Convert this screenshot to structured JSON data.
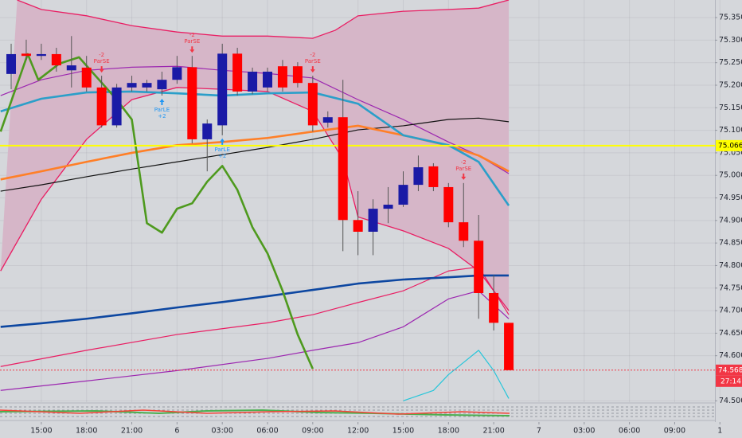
{
  "chart_data": {
    "type": "candlestick",
    "xlim": [
      -0.74,
      46.67
    ],
    "ylim": [
      74.497,
      75.389
    ],
    "xticks": [
      {
        "value": 2,
        "label": "15:00"
      },
      {
        "value": 5,
        "label": "18:00"
      },
      {
        "value": 8,
        "label": "21:00"
      },
      {
        "value": 11,
        "label": "6"
      },
      {
        "value": 14,
        "label": "03:00"
      },
      {
        "value": 17,
        "label": "06:00"
      },
      {
        "value": 20,
        "label": "09:00"
      },
      {
        "value": 23,
        "label": "12:00"
      },
      {
        "value": 26,
        "label": "15:00"
      },
      {
        "value": 29,
        "label": "18:00"
      },
      {
        "value": 32,
        "label": "21:00"
      },
      {
        "value": 35,
        "label": "7"
      },
      {
        "value": 38,
        "label": "03:00"
      },
      {
        "value": 41,
        "label": "06:00"
      },
      {
        "value": 44,
        "label": "09:00"
      },
      {
        "value": 47,
        "label": "1"
      }
    ],
    "yticks": [
      {
        "value": 75.35,
        "label": "75.350"
      },
      {
        "value": 75.3,
        "label": "75.300"
      },
      {
        "value": 75.25,
        "label": "75.250"
      },
      {
        "value": 75.2,
        "label": "75.200"
      },
      {
        "value": 75.15,
        "label": "75.150"
      },
      {
        "value": 75.1,
        "label": "75.100"
      },
      {
        "value": 75.05,
        "label": "75.050"
      },
      {
        "value": 75.0,
        "label": "75.000"
      },
      {
        "value": 74.95,
        "label": "74.950"
      },
      {
        "value": 74.9,
        "label": "74.900"
      },
      {
        "value": 74.85,
        "label": "74.850"
      },
      {
        "value": 74.8,
        "label": "74.800"
      },
      {
        "value": 74.75,
        "label": "74.750"
      },
      {
        "value": 74.7,
        "label": "74.700"
      },
      {
        "value": 74.65,
        "label": "74.650"
      },
      {
        "value": 74.6,
        "label": "74.600"
      },
      {
        "value": 74.5,
        "label": "74.500"
      }
    ],
    "grid": true,
    "up_color": "#1a1aa6",
    "down_color": "#ff0000",
    "wick_color": "#555555",
    "open": [
      75.225,
      75.27,
      75.265,
      75.269,
      75.233,
      75.239,
      75.195,
      75.111,
      75.195,
      75.195,
      75.191,
      75.212,
      75.24,
      75.08,
      75.111,
      75.27,
      75.186,
      75.195,
      75.242,
      75.242,
      75.205,
      75.117,
      75.129,
      74.901,
      74.875,
      74.926,
      74.935,
      74.979,
      75.02,
      74.974,
      74.896,
      74.855,
      74.739,
      74.673
    ],
    "high": [
      75.292,
      75.301,
      75.292,
      75.283,
      75.309,
      75.265,
      75.221,
      75.203,
      75.221,
      75.212,
      75.23,
      75.265,
      75.265,
      75.124,
      75.292,
      75.283,
      75.239,
      75.239,
      75.256,
      75.251,
      75.221,
      75.142,
      75.212,
      74.965,
      74.947,
      74.974,
      75.009,
      75.044,
      75.027,
      74.983,
      74.983,
      74.912,
      74.779,
      74.673
    ],
    "low": [
      75.191,
      75.256,
      75.256,
      75.23,
      75.195,
      75.186,
      75.106,
      75.106,
      75.186,
      75.186,
      75.177,
      75.203,
      75.071,
      75.009,
      75.089,
      75.177,
      75.18,
      75.186,
      75.186,
      75.195,
      75.097,
      75.106,
      74.832,
      74.823,
      74.823,
      74.894,
      74.93,
      74.965,
      74.965,
      74.885,
      74.841,
      74.682,
      74.656,
      74.568
    ],
    "close": [
      75.269,
      75.265,
      75.269,
      75.244,
      75.244,
      75.195,
      75.111,
      75.195,
      75.205,
      75.205,
      75.212,
      75.24,
      75.08,
      75.115,
      75.27,
      75.186,
      75.23,
      75.23,
      75.195,
      75.205,
      75.111,
      75.129,
      74.901,
      74.875,
      74.926,
      74.935,
      74.979,
      75.018,
      74.974,
      74.896,
      74.855,
      74.739,
      74.673,
      74.568
    ],
    "bands": {
      "color": "#e91e63",
      "fill": "#d6b6c8",
      "upper": {
        "x": [
          0.4,
          2,
          5,
          8,
          11,
          14,
          17,
          20,
          21.5,
          23,
          26,
          29,
          31,
          33
        ],
        "values": [
          75.389,
          75.368,
          75.354,
          75.332,
          75.318,
          75.309,
          75.309,
          75.304,
          75.322,
          75.354,
          75.364,
          75.368,
          75.371,
          75.389
        ]
      },
      "lower": {
        "x": [
          -0.7,
          2,
          5,
          8,
          11,
          14,
          17,
          20,
          22,
          23,
          26,
          29,
          31,
          33
        ],
        "values": [
          74.788,
          74.947,
          75.08,
          75.168,
          75.195,
          75.191,
          75.186,
          75.142,
          75.036,
          74.908,
          74.877,
          74.838,
          74.788,
          74.7
        ]
      }
    },
    "series": [
      {
        "color": "#9c27b0",
        "thick": false,
        "x": [
          -0.7,
          2,
          5,
          8,
          11,
          14,
          17,
          20,
          23,
          26,
          29,
          31,
          33
        ],
        "values": [
          75.177,
          75.212,
          75.233,
          75.24,
          75.242,
          75.233,
          75.226,
          75.216,
          75.168,
          75.124,
          75.074,
          75.044,
          75.004
        ]
      },
      {
        "color": "#e91e63",
        "thick": false,
        "x": [
          -0.7,
          5,
          11,
          17,
          20,
          23,
          26,
          29,
          31,
          33
        ],
        "values": [
          74.576,
          74.612,
          74.647,
          74.673,
          74.691,
          74.718,
          74.744,
          74.788,
          74.797,
          74.691
        ]
      },
      {
        "color": "#9c27b0",
        "thick": false,
        "x": [
          -0.7,
          5,
          11,
          17,
          20,
          23,
          26,
          29,
          31,
          33
        ],
        "values": [
          74.523,
          74.544,
          74.567,
          74.594,
          74.612,
          74.629,
          74.664,
          74.726,
          74.744,
          74.682
        ]
      },
      {
        "color": "#26c6da",
        "thick": false,
        "x": [
          26,
          28,
          29,
          30,
          31,
          32,
          33
        ],
        "values": [
          74.5,
          74.523,
          74.558,
          74.585,
          74.612,
          74.567,
          74.505
        ]
      },
      {
        "color": "#0d47a1",
        "thick": true,
        "x": [
          -0.7,
          2,
          5,
          8,
          11,
          14,
          17,
          20,
          23,
          26,
          29,
          31,
          33
        ],
        "values": [
          74.664,
          74.672,
          74.682,
          74.694,
          74.707,
          74.719,
          74.732,
          74.746,
          74.76,
          74.769,
          74.774,
          74.778,
          74.778
        ]
      },
      {
        "color": "#111111",
        "thick": false,
        "x": [
          -0.7,
          2,
          5,
          8,
          11,
          14,
          17,
          20,
          23,
          26,
          29,
          31,
          33
        ],
        "values": [
          74.965,
          74.979,
          74.997,
          75.014,
          75.03,
          75.046,
          75.062,
          75.08,
          75.101,
          75.11,
          75.124,
          75.127,
          75.119
        ]
      },
      {
        "color": "#ff7f27",
        "thick": true,
        "x": [
          -0.7,
          2,
          5,
          8,
          11,
          14,
          17,
          20,
          23,
          26,
          29,
          31,
          33
        ],
        "values": [
          74.991,
          75.009,
          75.03,
          75.05,
          75.067,
          75.074,
          75.083,
          75.097,
          75.11,
          75.089,
          75.066,
          75.044,
          75.009
        ]
      },
      {
        "color": "#2b9fc9",
        "thick": true,
        "x": [
          -0.7,
          2,
          5,
          8,
          11,
          14,
          17,
          20,
          23,
          26,
          29,
          31,
          33
        ],
        "values": [
          75.142,
          75.17,
          75.184,
          75.186,
          75.182,
          75.177,
          75.182,
          75.184,
          75.159,
          75.089,
          75.067,
          75.03,
          74.933
        ]
      },
      {
        "color": "#4e9a1e",
        "thick": true,
        "x": [
          -0.7,
          1.1,
          1.8,
          3.2,
          4.5,
          7,
          8,
          9,
          10,
          11,
          12,
          13,
          14,
          15,
          16,
          17,
          18,
          19,
          20
        ],
        "values": [
          75.097,
          75.269,
          75.212,
          75.248,
          75.262,
          75.168,
          75.124,
          74.894,
          74.873,
          74.926,
          74.938,
          74.986,
          75.021,
          74.968,
          74.885,
          74.827,
          74.744,
          74.647,
          74.571
        ]
      }
    ],
    "price_lines": [
      {
        "value": 75.066,
        "color": "#ffff00",
        "text_color": "#000000"
      },
      {
        "value": 74.568,
        "color": "#f23645",
        "text_color": "#ffffff",
        "sub_label": "27:14"
      }
    ],
    "signals": [
      {
        "candle": 6,
        "side": "short",
        "label": "ParSE",
        "qty": "-2",
        "color": "#f23645"
      },
      {
        "candle": 10,
        "side": "long",
        "label": "ParLE",
        "qty": "+2",
        "color": "#2196f3"
      },
      {
        "candle": 12,
        "side": "short",
        "label": "ParSE",
        "qty": "-2",
        "color": "#f23645"
      },
      {
        "candle": 14,
        "side": "long",
        "label": "ParLE",
        "qty": "+2",
        "color": "#2196f3"
      },
      {
        "candle": 20,
        "side": "short",
        "label": "ParSE",
        "qty": "-2",
        "color": "#f23645"
      },
      {
        "candle": 30,
        "side": "short",
        "label": "ParSE",
        "qty": "-2",
        "color": "#f23645"
      }
    ]
  }
}
